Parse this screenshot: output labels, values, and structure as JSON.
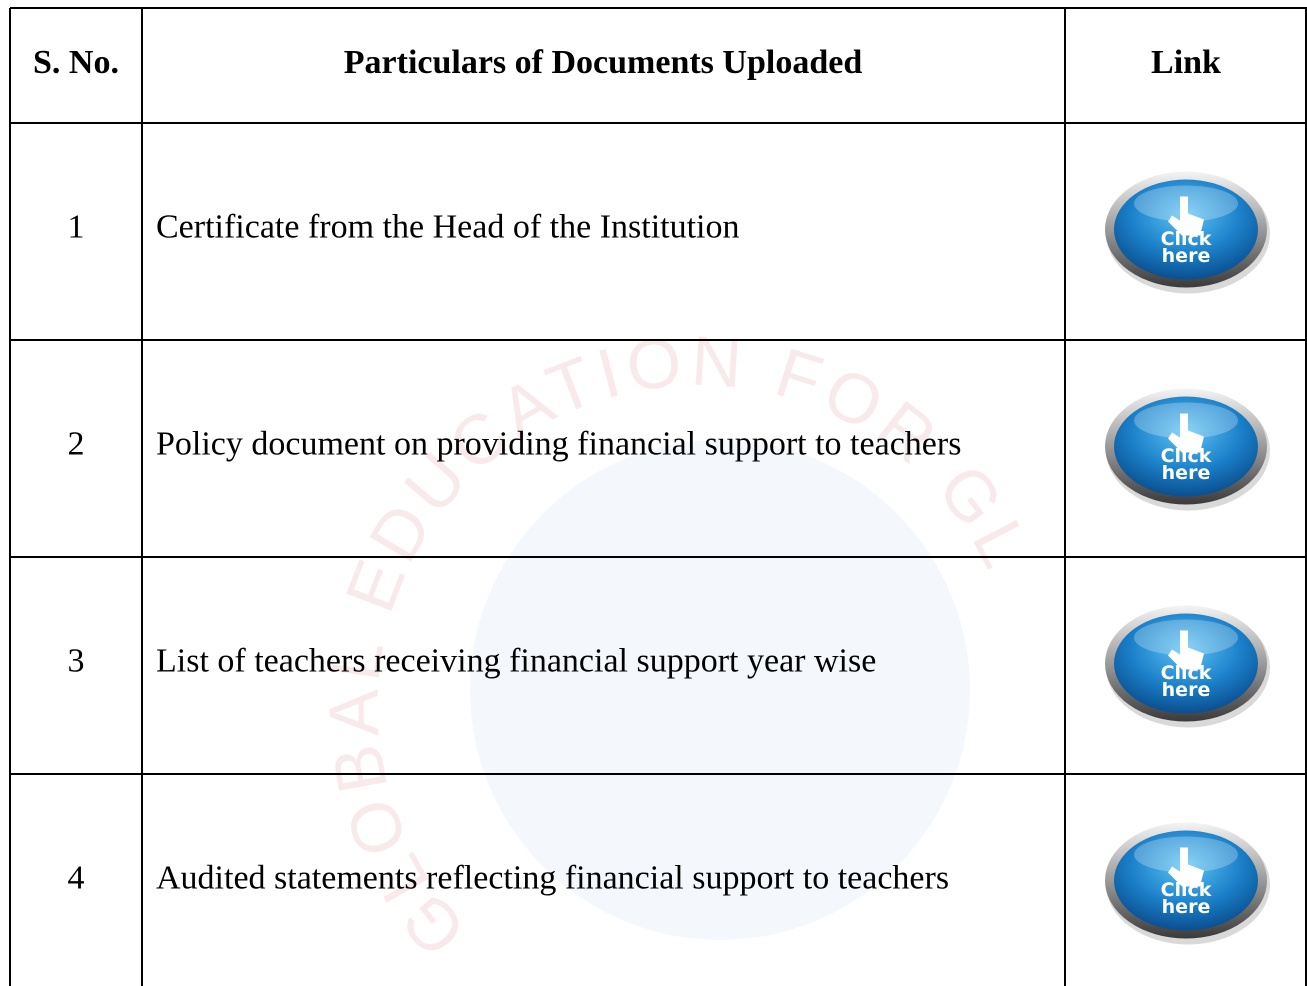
{
  "header": {
    "sno": "S. No.",
    "particulars": "Particulars of Documents Uploaded",
    "link": "Link"
  },
  "rows": [
    {
      "sno": "1",
      "particulars": "Certificate from the Head of the Institution",
      "link": [
        "Click",
        "here"
      ]
    },
    {
      "sno": "2",
      "particulars": "Policy document on providing financial support to teachers",
      "link": [
        "Click",
        "here"
      ]
    },
    {
      "sno": "3",
      "particulars": "List of teachers receiving financial support year wise",
      "link": [
        "Click",
        "here"
      ]
    },
    {
      "sno": "4",
      "particulars": "Audited statements reflecting financial support to teachers",
      "link": [
        "Click",
        "here"
      ]
    }
  ],
  "watermark": "GLOBAL EDUCATION FOR GLOBAL CAREER"
}
